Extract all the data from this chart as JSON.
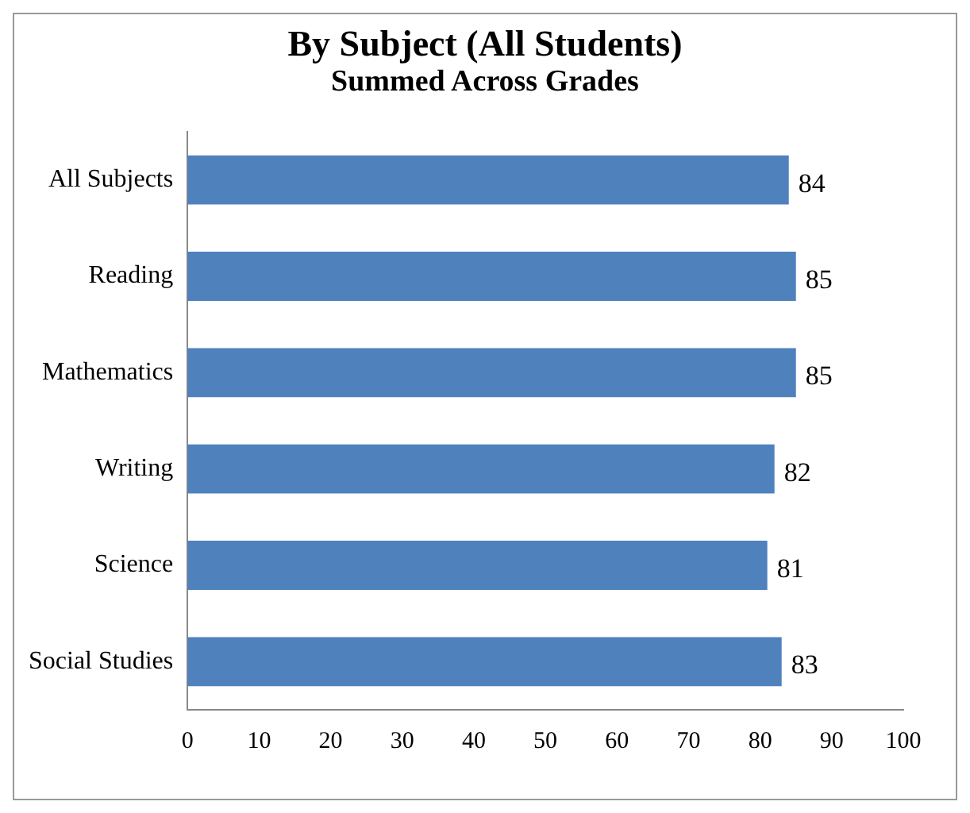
{
  "chart_data": {
    "type": "bar",
    "orientation": "horizontal",
    "title": "By Subject (All Students)",
    "subtitle": "Summed Across Grades",
    "categories": [
      "All Subjects",
      "Reading",
      "Mathematics",
      "Writing",
      "Science",
      "Social Studies"
    ],
    "values": [
      84,
      85,
      85,
      82,
      81,
      83
    ],
    "color": "#4f81bd",
    "xlim": [
      0,
      100
    ],
    "xticks": [
      0,
      10,
      20,
      30,
      40,
      50,
      60,
      70,
      80,
      90,
      100
    ],
    "grid": false,
    "legend": false,
    "data_labels": true
  }
}
